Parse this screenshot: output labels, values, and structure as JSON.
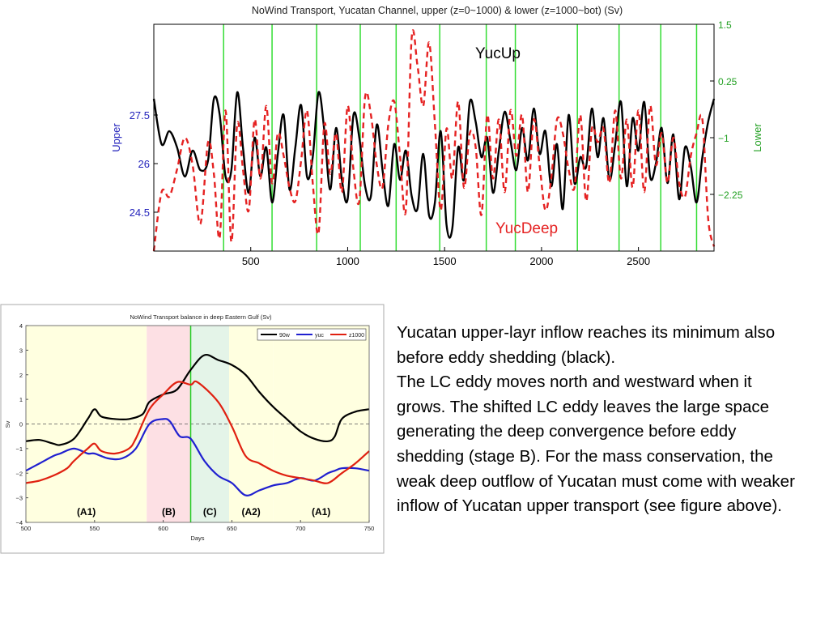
{
  "chart_data": [
    {
      "type": "line",
      "title": "NoWind Transport, Yucatan Channel, upper (z=0~1000) & lower (z=1000~bot) (Sv)",
      "xlim": [
        0,
        2890
      ],
      "x_ticks": [
        "500",
        "1000",
        "1500",
        "2000",
        "2500"
      ],
      "left_axis": {
        "label": "Upper",
        "ticks": [
          "24.5",
          "26",
          "27.5"
        ],
        "range": [
          23.3,
          30.3
        ],
        "color": "#2222bb"
      },
      "right_axis": {
        "label": "Lower",
        "ticks": [
          "−2.25",
          "−1",
          "0.25",
          "1.5"
        ],
        "range": [
          -3.5,
          1.5
        ],
        "color": "#22a022"
      },
      "vertical_lines_x": [
        360,
        610,
        840,
        1065,
        1250,
        1475,
        1715,
        1865,
        2185,
        2400,
        2615,
        2800
      ],
      "series": [
        {
          "name": "YucUp",
          "axis": "left",
          "color": "#000000",
          "dash": "solid",
          "x": [
            0,
            40,
            80,
            120,
            160,
            200,
            240,
            280,
            310,
            340,
            370,
            400,
            430,
            460,
            490,
            520,
            550,
            580,
            610,
            640,
            670,
            700,
            730,
            760,
            790,
            820,
            850,
            880,
            910,
            940,
            970,
            1000,
            1030,
            1060,
            1090,
            1120,
            1150,
            1180,
            1210,
            1240,
            1270,
            1300,
            1330,
            1360,
            1390,
            1420,
            1450,
            1480,
            1510,
            1540,
            1570,
            1600,
            1630,
            1660,
            1690,
            1720,
            1750,
            1780,
            1810,
            1840,
            1870,
            1900,
            1930,
            1960,
            1990,
            2020,
            2050,
            2080,
            2110,
            2140,
            2170,
            2200,
            2230,
            2260,
            2290,
            2320,
            2350,
            2380,
            2410,
            2440,
            2470,
            2500,
            2530,
            2560,
            2590,
            2620,
            2650,
            2680,
            2710,
            2740,
            2770,
            2800,
            2830,
            2860,
            2890
          ],
          "y": [
            28.0,
            26.6,
            27.0,
            26.5,
            25.6,
            26.4,
            25.8,
            26.1,
            28.0,
            27.5,
            25.6,
            25.8,
            28.2,
            26.5,
            25.1,
            26.8,
            25.6,
            26.5,
            24.8,
            26.3,
            27.5,
            25.2,
            26.5,
            27.8,
            25.6,
            26.2,
            28.2,
            27.0,
            25.2,
            27.1,
            25.5,
            24.9,
            27.5,
            26.8,
            25.3,
            25.0,
            27.2,
            25.8,
            24.7,
            26.6,
            25.5,
            26.4,
            25.0,
            24.6,
            26.3,
            24.4,
            24.8,
            27.0,
            24.1,
            24.0,
            26.5,
            25.5,
            27.9,
            27.3,
            26.2,
            26.8,
            25.1,
            26.4,
            27.6,
            26.7,
            25.8,
            27.1,
            26.1,
            27.7,
            26.3,
            27.0,
            25.3,
            26.6,
            24.6,
            27.5,
            25.4,
            26.2,
            25.9,
            27.7,
            26.2,
            27.4,
            25.5,
            26.6,
            27.9,
            25.3,
            27.4,
            26.4,
            27.9,
            25.6,
            26.0,
            27.1,
            25.4,
            26.9,
            24.9,
            26.5,
            25.9,
            24.8,
            26.2,
            27.3,
            28.0
          ]
        },
        {
          "name": "YucDeep",
          "axis": "right",
          "color": "#e52222",
          "dash": "dashed",
          "x": [
            0,
            40,
            80,
            120,
            160,
            200,
            240,
            280,
            310,
            340,
            370,
            400,
            430,
            460,
            490,
            520,
            550,
            580,
            610,
            640,
            670,
            700,
            730,
            760,
            790,
            820,
            850,
            880,
            910,
            940,
            970,
            1000,
            1030,
            1060,
            1090,
            1120,
            1150,
            1180,
            1210,
            1240,
            1270,
            1300,
            1330,
            1360,
            1390,
            1420,
            1450,
            1480,
            1510,
            1540,
            1570,
            1600,
            1630,
            1660,
            1690,
            1720,
            1750,
            1780,
            1810,
            1840,
            1870,
            1900,
            1930,
            1960,
            1990,
            2020,
            2050,
            2080,
            2110,
            2140,
            2170,
            2200,
            2230,
            2260,
            2290,
            2320,
            2350,
            2380,
            2410,
            2440,
            2470,
            2500,
            2530,
            2560,
            2590,
            2620,
            2650,
            2680,
            2710,
            2740,
            2770,
            2800,
            2830,
            2860,
            2890
          ],
          "y": [
            -3.5,
            -2.2,
            -2.3,
            -1.7,
            -1.0,
            -1.6,
            -2.9,
            -1.1,
            -1.8,
            -3.2,
            -0.4,
            -3.3,
            -0.7,
            -1.7,
            -2.6,
            -0.6,
            -1.9,
            -0.3,
            -2.0,
            -0.9,
            -1.4,
            -2.1,
            -2.4,
            -1.5,
            -0.4,
            -2.0,
            -3.1,
            -0.7,
            -1.8,
            -0.9,
            -2.2,
            -0.3,
            -1.7,
            -2.4,
            -0.1,
            -0.5,
            -1.6,
            -2.1,
            -0.7,
            -0.2,
            -1.4,
            -2.6,
            1.2,
            0.6,
            -0.3,
            1.1,
            -0.7,
            -2.6,
            -0.8,
            -1.9,
            -0.2,
            -2.1,
            -0.9,
            -1.2,
            -2.7,
            -0.5,
            -1.9,
            -0.6,
            -2.2,
            -0.4,
            -1.4,
            -0.5,
            -2.2,
            -0.6,
            -1.6,
            -2.6,
            -1.9,
            -0.6,
            -0.9,
            -1.7,
            -2.1,
            -0.5,
            -2.4,
            -0.8,
            -1.1,
            -0.8,
            -2.0,
            -0.4,
            -1.9,
            -0.6,
            -2.1,
            -0.4,
            -2.2,
            -0.3,
            -1.6,
            -0.9,
            -2.0,
            -1.0,
            -2.0,
            -2.3,
            -1.4,
            -0.9,
            -0.6,
            -2.8,
            -3.4
          ]
        }
      ]
    },
    {
      "type": "line",
      "title": "NoWind Transport balance in deep Eastern Gulf (Sv)",
      "xlabel": "Days",
      "ylabel": "Sv",
      "xlim": [
        500,
        750
      ],
      "ylim": [
        -4,
        4
      ],
      "x_ticks": [
        "500",
        "550",
        "600",
        "650",
        "700",
        "750"
      ],
      "y_ticks": [
        "−4",
        "−3",
        "−2",
        "−1",
        "0",
        "1",
        "2",
        "3",
        "4"
      ],
      "zero_line": "dashed",
      "legend": "top-right",
      "stages": [
        {
          "label": "(A1)",
          "from": 500,
          "to": 588,
          "color": "#ffffe0"
        },
        {
          "label": "(B)",
          "from": 588,
          "to": 620,
          "color": "#fde0e4"
        },
        {
          "label": "(C)",
          "from": 620,
          "to": 648,
          "color": "#e4f4e8"
        },
        {
          "label": "(A2)",
          "from": 648,
          "to": 680,
          "color": "#ffffe0"
        },
        {
          "label": "(A1)",
          "from": 680,
          "to": 750,
          "color": "#ffffe0"
        }
      ],
      "marker_line_x": 620,
      "series": [
        {
          "name": "90w",
          "color": "#000000",
          "x": [
            500,
            510,
            520,
            525,
            535,
            545,
            550,
            555,
            565,
            575,
            585,
            590,
            600,
            610,
            620,
            630,
            640,
            650,
            660,
            670,
            680,
            690,
            700,
            710,
            720,
            725,
            730,
            740,
            750
          ],
          "y": [
            -0.7,
            -0.65,
            -0.8,
            -0.85,
            -0.6,
            0.2,
            0.6,
            0.3,
            0.2,
            0.2,
            0.4,
            0.9,
            1.2,
            1.4,
            2.2,
            2.8,
            2.6,
            2.4,
            2.0,
            1.3,
            0.7,
            0.2,
            -0.3,
            -0.6,
            -0.7,
            -0.5,
            0.2,
            0.5,
            0.6
          ]
        },
        {
          "name": "yuc",
          "color": "#2020d0",
          "x": [
            500,
            510,
            520,
            525,
            535,
            545,
            550,
            560,
            570,
            580,
            590,
            600,
            605,
            612,
            620,
            630,
            640,
            650,
            660,
            670,
            680,
            690,
            700,
            710,
            720,
            725,
            730,
            740,
            750
          ],
          "y": [
            -1.9,
            -1.6,
            -1.3,
            -1.2,
            -1.0,
            -1.2,
            -1.2,
            -1.4,
            -1.4,
            -1.0,
            0.0,
            0.2,
            0.1,
            -0.5,
            -0.6,
            -1.5,
            -2.1,
            -2.4,
            -2.9,
            -2.7,
            -2.5,
            -2.4,
            -2.2,
            -2.3,
            -2.0,
            -1.9,
            -1.8,
            -1.8,
            -1.9
          ]
        },
        {
          "name": "z1000",
          "color": "#e02010",
          "x": [
            500,
            510,
            520,
            530,
            535,
            545,
            550,
            555,
            565,
            575,
            580,
            590,
            600,
            610,
            620,
            625,
            640,
            650,
            660,
            670,
            680,
            690,
            700,
            710,
            720,
            730,
            740,
            750
          ],
          "y": [
            -2.4,
            -2.3,
            -2.1,
            -1.8,
            -1.5,
            -1.0,
            -0.8,
            -1.1,
            -1.2,
            -1.0,
            -0.6,
            0.6,
            1.2,
            1.7,
            1.6,
            1.7,
            0.9,
            -0.1,
            -1.3,
            -1.6,
            -1.9,
            -2.1,
            -2.2,
            -2.3,
            -2.4,
            -2.0,
            -1.6,
            -1.1
          ]
        }
      ]
    }
  ],
  "labels": {
    "yuc_up": "YucUp",
    "yuc_deep": "YucDeep"
  },
  "note": {
    "p1": "Yucatan upper-layr inflow reaches its minimum also before eddy shedding (black).",
    "p2": "The LC eddy moves north and westward when it grows.  The shifted LC eddy leaves the large space generating the deep convergence before eddy shedding (stage B). For the mass conservation, the weak deep outflow of Yucatan must come with weaker inflow of Yucatan upper transport (see figure above)."
  }
}
